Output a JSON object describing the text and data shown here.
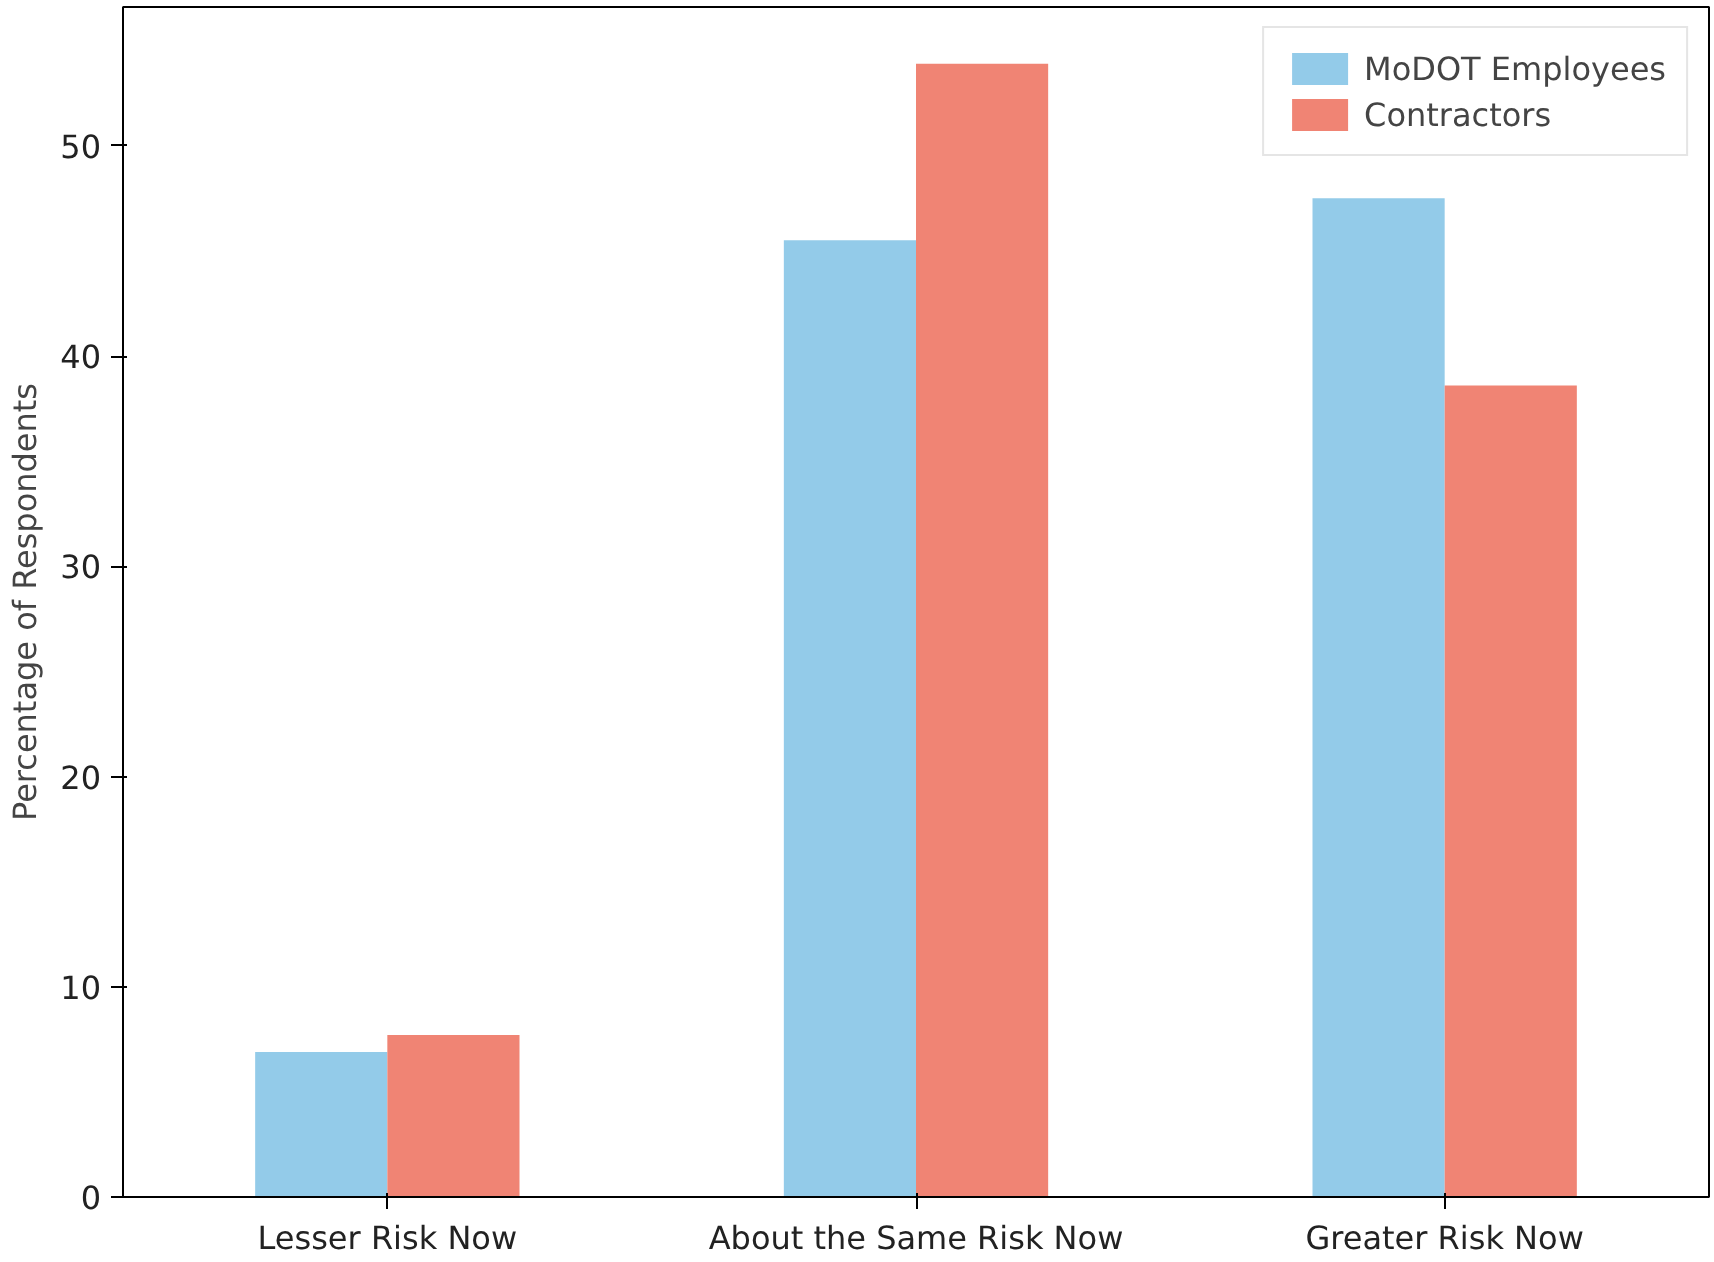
{
  "chart_data": {
    "type": "bar",
    "ylabel": "Percentage of Respondents",
    "categories": [
      "Lesser Risk Now",
      "About the Same Risk Now",
      "Greater Risk Now"
    ],
    "series": [
      {
        "name": "MoDOT Employees",
        "color": "#93cbe9",
        "values": [
          6.9,
          45.5,
          47.5
        ]
      },
      {
        "name": "Contractors",
        "color": "#f08474",
        "values": [
          7.7,
          53.9,
          38.6
        ]
      }
    ],
    "ylim": [
      0,
      56.6
    ],
    "yticks": [
      0,
      10,
      20,
      30,
      40,
      50
    ],
    "grid": false,
    "legend": "top right"
  }
}
